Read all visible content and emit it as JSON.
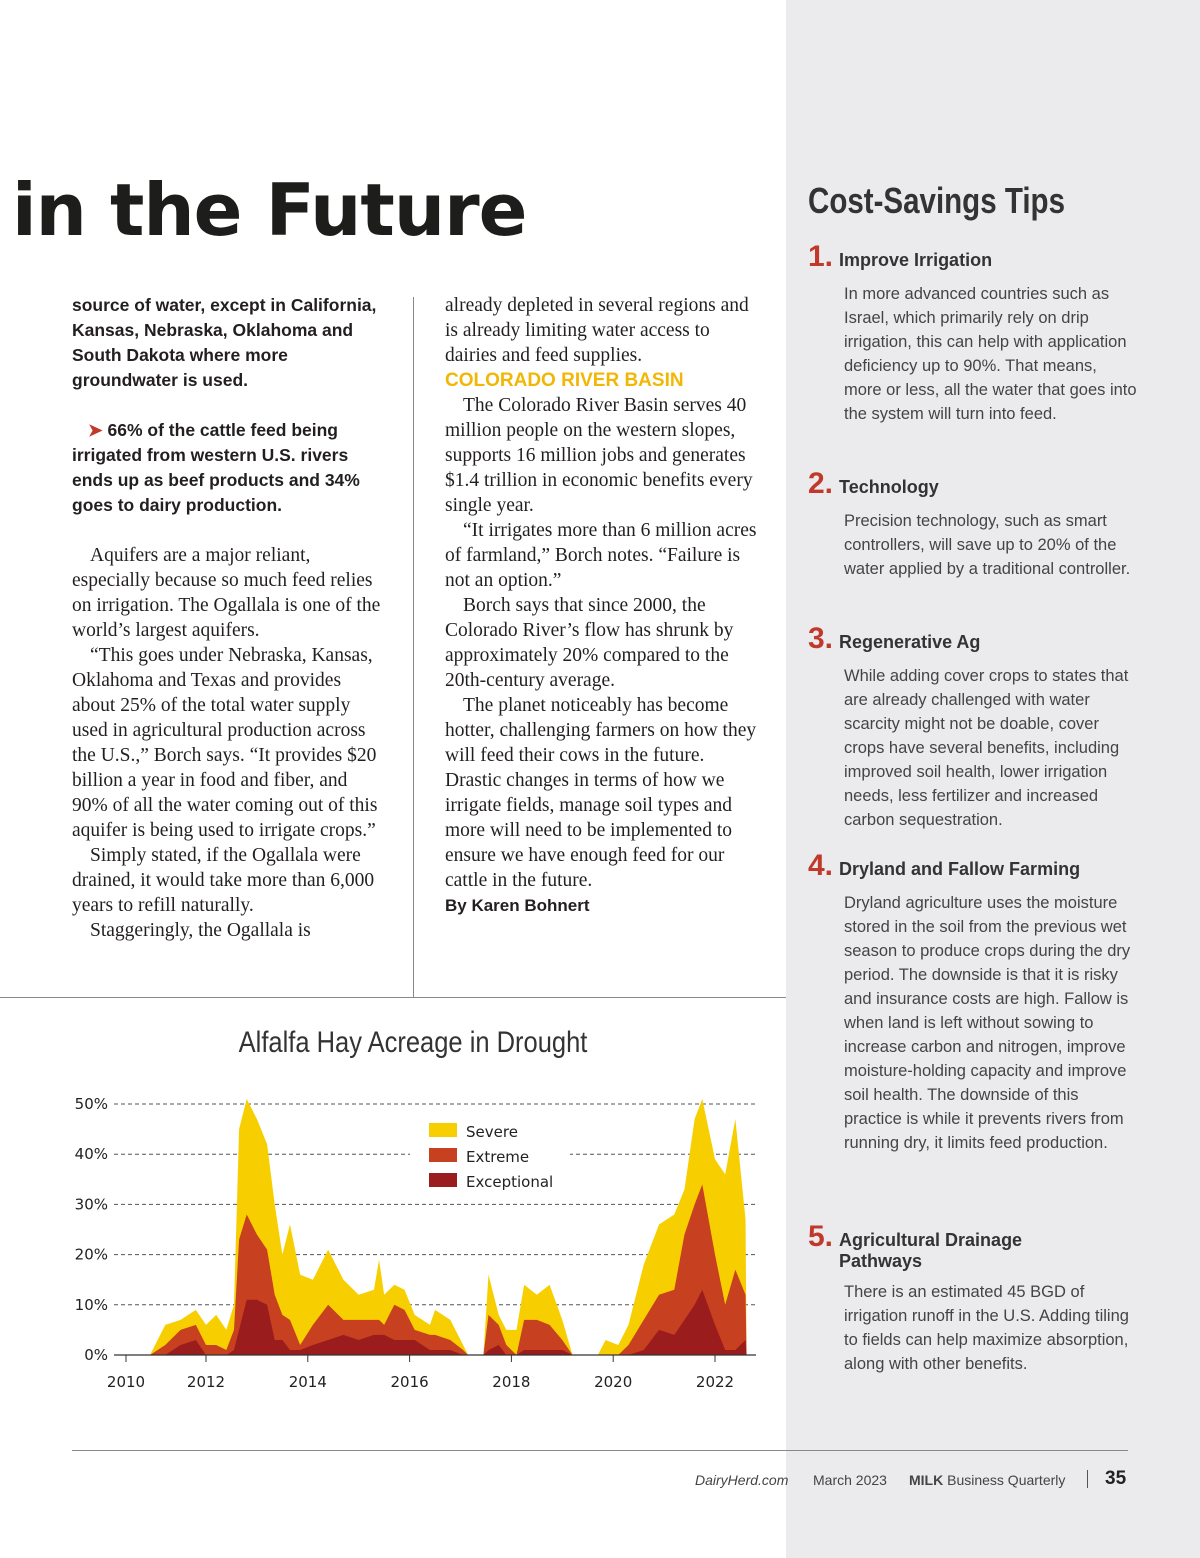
{
  "headline": "in the Future",
  "col1": {
    "intro": "source of water, except in California, Kansas, Nebraska, Oklahoma and South Dakota where more groundwater is used.",
    "bullet": "66% of the cattle feed being irrigated from western U.S. rivers ends up as beef products and 34% goes to dairy production.",
    "paragraphs": [
      "Aquifers are a major reliant, especially because so much feed relies on irrigation. The Ogallala is one of the world’s largest aquifers.",
      "“This goes under Nebraska, Kansas, Oklahoma and Texas and provides about 25% of the total water supply used in agricultural production across the U.S.,” Borch says. “It provides $20 billion a year in food and fiber, and 90% of all the water coming out of this aquifer is being used to irrigate crops.”",
      "Simply stated, if the Ogallala were drained, it would take more than 6,000 years to refill naturally.",
      "Staggeringly, the Ogallala is"
    ]
  },
  "col2": {
    "lead": "already depleted in several regions and is already limiting water access to dairies and feed supplies.",
    "subhead": "COLORADO RIVER BASIN",
    "paragraphs": [
      "The Colorado River Basin serves 40 million people on the western slopes, supports 16 million jobs and generates $1.4 trillion in economic benefits every single year.",
      "“It irrigates more than 6 million acres of farmland,” Borch notes. “Failure is not an option.”",
      "Borch says that since 2000, the Colorado River’s flow has shrunk by approximately 20% compared to the 20th-century average.",
      "The planet noticeably has become hotter, challenging farmers on how they will feed their cows in the future. Drastic changes in terms of how we irrigate fields, manage soil types and more will need to be implemented to ensure we have enough feed for our cattle in the future."
    ],
    "byline": "By Karen Bohnert"
  },
  "sidebar": {
    "title": "Cost-Savings Tips",
    "tips": [
      {
        "num": "1.",
        "title": "Improve Irrigation",
        "body": "In more advanced countries such as Israel, which primarily rely on drip irrigation, this can help with application deficiency up to 90%. That means, more or less, all the water that goes into the system will turn into feed."
      },
      {
        "num": "2.",
        "title": "Technology",
        "body": "Precision technology, such as smart controllers, will save up to 20% of the water applied by a traditional controller."
      },
      {
        "num": "3.",
        "title": "Regenerative Ag",
        "body": "While adding cover crops to states that are already challenged with water scarcity might not be doable, cover crops have several benefits, including improved soil health, lower irrigation needs, less fertilizer and increased carbon sequestration."
      },
      {
        "num": "4.",
        "title": "Dryland and Fallow Farming",
        "body": "Dryland agriculture uses the moisture stored in the soil from the previous wet season to produce crops during the dry period. The downside is that it is risky and insurance costs are high. Fallow is when land is left without sowing to increase carbon and nitrogen, improve moisture-holding capacity and improve soil health. The downside of this practice is while it prevents rivers from running dry, it limits feed production."
      },
      {
        "num": "5.",
        "title": "Agricultural Drainage Pathways",
        "body": "There is an estimated 45 BGD of irrigation runoff in the U.S. Adding tiling to fields can help maximize absorption, along with other benefits."
      }
    ]
  },
  "chart_data": {
    "type": "area",
    "title": "Alfalfa Hay Acreage in Drought",
    "ylim": [
      0,
      50
    ],
    "yticks": [
      "0%",
      "10%",
      "20%",
      "30%",
      "40%",
      "50%"
    ],
    "xticks": [
      "2010",
      "2012",
      "2014",
      "2016",
      "2018",
      "2020",
      "2022"
    ],
    "legend": [
      "Severe",
      "Extreme",
      "Exceptional"
    ],
    "colors": [
      "#f7cf00",
      "#c7401f",
      "#9b1c1c"
    ],
    "x": [
      2010.9,
      2011.2,
      2011.5,
      2011.8,
      2012.0,
      2012.2,
      2012.4,
      2012.55,
      2012.65,
      2012.8,
      2013.0,
      2013.2,
      2013.35,
      2013.5,
      2013.65,
      2013.85,
      2014.1,
      2014.4,
      2014.7,
      2015.0,
      2015.3,
      2015.4,
      2015.5,
      2015.7,
      2015.9,
      2016.1,
      2016.4,
      2016.5,
      2016.8,
      2017.05,
      2017.15,
      2017.45,
      2017.55,
      2017.75,
      2017.9,
      2018.1,
      2018.25,
      2018.5,
      2018.75,
      2019.0,
      2019.2,
      2019.7,
      2019.85,
      2020.1,
      2020.3,
      2020.6,
      2020.9,
      2021.2,
      2021.4,
      2021.6,
      2021.75,
      2022.0,
      2022.2,
      2022.4,
      2022.6,
      2022.62
    ],
    "series": [
      {
        "name": "Severe",
        "values": [
          0,
          6,
          7,
          9,
          6,
          8,
          5,
          10,
          45,
          51,
          47,
          42,
          30,
          20,
          26,
          16,
          15,
          21,
          15,
          12,
          13,
          19,
          12,
          14,
          13,
          8,
          6,
          9,
          7,
          2,
          0,
          0,
          16,
          8,
          5,
          5,
          14,
          12,
          14,
          7,
          0,
          0,
          3,
          2,
          6,
          18,
          26,
          28,
          33,
          47,
          51,
          39,
          36,
          47,
          27,
          0
        ]
      },
      {
        "name": "Extreme",
        "values": [
          0,
          2,
          5,
          6,
          2,
          2,
          1,
          5,
          23,
          28,
          24,
          21,
          12,
          8,
          7,
          2,
          6,
          10,
          7,
          7,
          7,
          7,
          6,
          10,
          9,
          5,
          4,
          4,
          3,
          1,
          0,
          0,
          8,
          6,
          2,
          0,
          7,
          7,
          6,
          3,
          0,
          0,
          0,
          0,
          2,
          7,
          12,
          13,
          24,
          30,
          34,
          20,
          10,
          17,
          12,
          0
        ]
      },
      {
        "name": "Exceptional",
        "values": [
          0,
          0,
          2,
          3,
          0,
          0,
          0,
          1,
          5,
          11,
          11,
          10,
          3,
          3,
          1,
          1,
          2,
          3,
          4,
          3,
          4,
          4,
          4,
          3,
          3,
          3,
          1,
          1,
          1,
          0,
          0,
          0,
          1,
          2,
          0,
          0,
          1,
          1,
          1,
          1,
          0,
          0,
          0,
          0,
          0,
          1,
          5,
          4,
          7,
          10,
          13,
          6,
          1,
          1,
          3,
          0
        ]
      }
    ]
  },
  "footer": {
    "site": "DairyHerd.com",
    "date": "March 2023",
    "brand_bold": "MILK",
    "brand_rest": " Business Quarterly",
    "page": "35"
  }
}
